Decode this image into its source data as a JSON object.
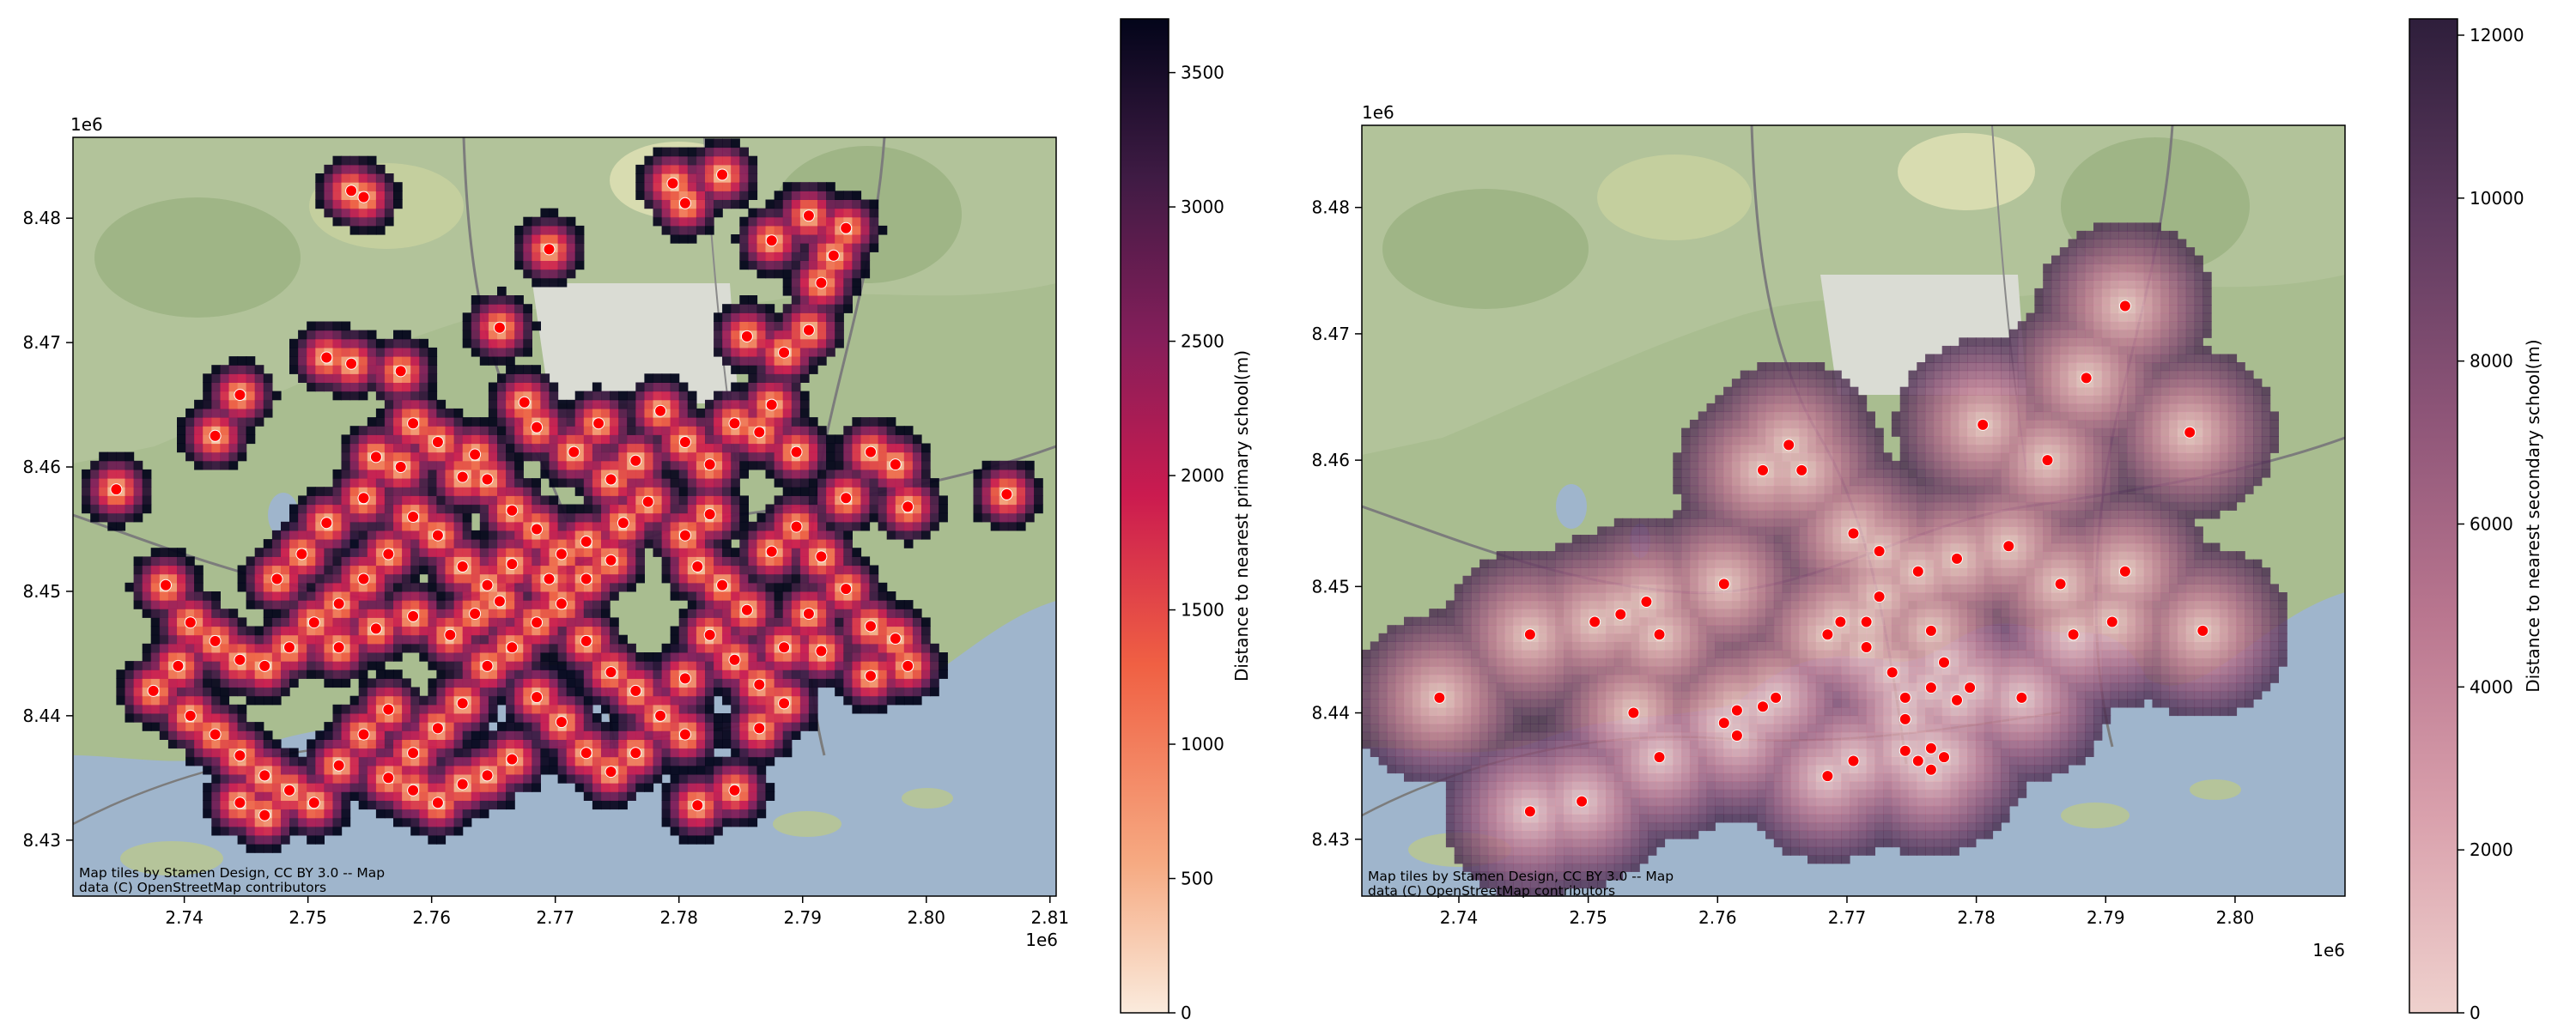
{
  "figure": {
    "panels": [
      {
        "id": "primary",
        "xlim": [
          2.731,
          2.8105
        ],
        "ylim": [
          8.4255,
          8.4865
        ],
        "xticks": [
          2.74,
          2.75,
          2.76,
          2.77,
          2.78,
          2.79,
          2.8,
          2.81
        ],
        "yticks": [
          8.43,
          8.44,
          8.45,
          8.46,
          8.47,
          8.48
        ],
        "xtick_labels": [
          "2.74",
          "2.75",
          "2.76",
          "2.77",
          "2.78",
          "2.79",
          "2.80",
          "2.81"
        ],
        "ytick_labels": [
          "8.43",
          "8.44",
          "8.45",
          "8.46",
          "8.47",
          "8.48"
        ],
        "x_offset_label": "1e6",
        "y_offset_label": "1e6",
        "attribution_line1": "Map tiles by Stamen Design, CC BY 3.0 -- Map",
        "attribution_line2": "data (C) OpenStreetMap contributors",
        "colorbar": {
          "label": "Distance to nearest primary school(m)",
          "vmin": 0,
          "vmax": 3700,
          "ticks": [
            0,
            500,
            1000,
            1500,
            2000,
            2500,
            3000,
            3500
          ],
          "tick_labels": [
            "0",
            "500",
            "1000",
            "1500",
            "2000",
            "2500",
            "3000",
            "3500"
          ],
          "colormap": "rocket_r",
          "colors": [
            "#faebdd",
            "#f6aa82",
            "#f06043",
            "#cb1b4f",
            "#841e5a",
            "#3f1b44",
            "#03051a"
          ]
        }
      },
      {
        "id": "secondary",
        "xlim": [
          2.7325,
          2.8085
        ],
        "ylim": [
          8.4255,
          8.4865
        ],
        "xticks": [
          2.74,
          2.75,
          2.76,
          2.77,
          2.78,
          2.79,
          2.8
        ],
        "yticks": [
          8.43,
          8.44,
          8.45,
          8.46,
          8.47,
          8.48
        ],
        "xtick_labels": [
          "2.74",
          "2.75",
          "2.76",
          "2.77",
          "2.78",
          "2.79",
          "2.80"
        ],
        "ytick_labels": [
          "8.43",
          "8.44",
          "8.45",
          "8.46",
          "8.47",
          "8.48"
        ],
        "x_offset_label": "1e6",
        "y_offset_label": "1e6",
        "attribution_line1": "Map tiles by Stamen Design, CC BY 3.0 -- Map",
        "attribution_line2": "data (C) OpenStreetMap contributors",
        "colorbar": {
          "label": "Distance to nearest secondary school(m)",
          "vmin": 0,
          "vmax": 12200,
          "ticks": [
            0,
            2000,
            4000,
            6000,
            8000,
            10000,
            12000
          ],
          "tick_labels": [
            "0",
            "2000",
            "4000",
            "6000",
            "8000",
            "10000",
            "12000"
          ],
          "colormap": "ch:s=-.2,r=.6",
          "colors": [
            "#efd1cd",
            "#d9a0ac",
            "#b9768f",
            "#8e5578",
            "#5e3a5f",
            "#2e1e3b"
          ]
        }
      }
    ],
    "school_marker_color": "#ff0000"
  },
  "chart_data": [
    {
      "type": "heatmap",
      "title": "",
      "xlabel": "",
      "ylabel": "",
      "value_label": "Distance to nearest primary school(m)",
      "xlim": [
        2731000,
        2810500
      ],
      "ylim": [
        8425500,
        8486500
      ],
      "value_range": [
        0,
        3700
      ],
      "schools": [
        [
          2.7345,
          8.4582
        ],
        [
          2.7535,
          8.4822
        ],
        [
          2.7545,
          8.4817
        ],
        [
          2.7795,
          8.4828
        ],
        [
          2.7805,
          8.4812
        ],
        [
          2.7835,
          8.4835
        ],
        [
          2.7695,
          8.4775
        ],
        [
          2.7425,
          8.4625
        ],
        [
          2.7445,
          8.4658
        ],
        [
          2.7515,
          8.4688
        ],
        [
          2.7535,
          8.4683
        ],
        [
          2.7575,
          8.4677
        ],
        [
          2.7585,
          8.4635
        ],
        [
          2.7555,
          8.4608
        ],
        [
          2.7645,
          8.459
        ],
        [
          2.7665,
          8.4565
        ],
        [
          2.7625,
          8.4592
        ],
        [
          2.7675,
          8.4652
        ],
        [
          2.7685,
          8.4632
        ],
        [
          2.7655,
          8.4712
        ],
        [
          2.7715,
          8.4612
        ],
        [
          2.7735,
          8.4635
        ],
        [
          2.7785,
          8.4645
        ],
        [
          2.7805,
          8.462
        ],
        [
          2.7825,
          8.4602
        ],
        [
          2.7845,
          8.4635
        ],
        [
          2.7865,
          8.4628
        ],
        [
          2.7895,
          8.4612
        ],
        [
          2.7875,
          8.465
        ],
        [
          2.7855,
          8.4705
        ],
        [
          2.7885,
          8.4692
        ],
        [
          2.7905,
          8.471
        ],
        [
          2.7915,
          8.4748
        ],
        [
          2.7875,
          8.4782
        ],
        [
          2.7905,
          8.4802
        ],
        [
          2.7935,
          8.4792
        ],
        [
          2.7925,
          8.477
        ],
        [
          2.7955,
          8.4612
        ],
        [
          2.7975,
          8.4602
        ],
        [
          2.7985,
          8.4568
        ],
        [
          2.8065,
          8.4578
        ],
        [
          2.7935,
          8.4575
        ],
        [
          2.7895,
          8.4552
        ],
        [
          2.7875,
          8.4532
        ],
        [
          2.7915,
          8.4528
        ],
        [
          2.7935,
          8.4502
        ],
        [
          2.7905,
          8.4482
        ],
        [
          2.7955,
          8.4472
        ],
        [
          2.7975,
          8.4462
        ],
        [
          2.7985,
          8.444
        ],
        [
          2.7955,
          8.4432
        ],
        [
          2.7915,
          8.4452
        ],
        [
          2.7885,
          8.4455
        ],
        [
          2.7855,
          8.4485
        ],
        [
          2.7835,
          8.4505
        ],
        [
          2.7815,
          8.452
        ],
        [
          2.7805,
          8.4545
        ],
        [
          2.7825,
          8.4562
        ],
        [
          2.7775,
          8.4572
        ],
        [
          2.7755,
          8.4555
        ],
        [
          2.7745,
          8.4525
        ],
        [
          2.7725,
          8.451
        ],
        [
          2.7705,
          8.453
        ],
        [
          2.7685,
          8.455
        ],
        [
          2.7665,
          8.4522
        ],
        [
          2.7645,
          8.4505
        ],
        [
          2.7625,
          8.452
        ],
        [
          2.7605,
          8.4545
        ],
        [
          2.7585,
          8.456
        ],
        [
          2.7565,
          8.453
        ],
        [
          2.7545,
          8.451
        ],
        [
          2.7525,
          8.449
        ],
        [
          2.7505,
          8.4475
        ],
        [
          2.7485,
          8.4455
        ],
        [
          2.7465,
          8.444
        ],
        [
          2.7445,
          8.4445
        ],
        [
          2.7425,
          8.446
        ],
        [
          2.7405,
          8.4475
        ],
        [
          2.7385,
          8.4505
        ],
        [
          2.7395,
          8.444
        ],
        [
          2.7375,
          8.442
        ],
        [
          2.7405,
          8.44
        ],
        [
          2.7425,
          8.4385
        ],
        [
          2.7445,
          8.4368
        ],
        [
          2.7465,
          8.4352
        ],
        [
          2.7485,
          8.434
        ],
        [
          2.7505,
          8.433
        ],
        [
          2.7465,
          8.432
        ],
        [
          2.7445,
          8.433
        ],
        [
          2.7525,
          8.436
        ],
        [
          2.7545,
          8.4385
        ],
        [
          2.7565,
          8.4405
        ],
        [
          2.7585,
          8.437
        ],
        [
          2.7605,
          8.439
        ],
        [
          2.7625,
          8.441
        ],
        [
          2.7645,
          8.444
        ],
        [
          2.7665,
          8.4455
        ],
        [
          2.7685,
          8.4475
        ],
        [
          2.7705,
          8.449
        ],
        [
          2.7725,
          8.446
        ],
        [
          2.7745,
          8.4435
        ],
        [
          2.7765,
          8.442
        ],
        [
          2.7785,
          8.44
        ],
        [
          2.7805,
          8.4385
        ],
        [
          2.7765,
          8.437
        ],
        [
          2.7745,
          8.4355
        ],
        [
          2.7725,
          8.437
        ],
        [
          2.7705,
          8.4395
        ],
        [
          2.7685,
          8.4415
        ],
        [
          2.7665,
          8.4365
        ],
        [
          2.7645,
          8.4352
        ],
        [
          2.7625,
          8.4345
        ],
        [
          2.7605,
          8.433
        ],
        [
          2.7585,
          8.434
        ],
        [
          2.7565,
          8.435
        ],
        [
          2.7805,
          8.443
        ],
        [
          2.7825,
          8.4465
        ],
        [
          2.7845,
          8.4445
        ],
        [
          2.7865,
          8.4425
        ],
        [
          2.7885,
          8.441
        ],
        [
          2.7865,
          8.439
        ],
        [
          2.7845,
          8.434
        ],
        [
          2.7815,
          8.4328
        ],
        [
          2.7525,
          8.4455
        ],
        [
          2.7555,
          8.447
        ],
        [
          2.7585,
          8.448
        ],
        [
          2.7615,
          8.4465
        ],
        [
          2.7635,
          8.4482
        ],
        [
          2.7655,
          8.4492
        ],
        [
          2.7695,
          8.451
        ],
        [
          2.7725,
          8.454
        ],
        [
          2.7745,
          8.459
        ],
        [
          2.7765,
          8.4605
        ],
        [
          2.7635,
          8.461
        ],
        [
          2.7605,
          8.462
        ],
        [
          2.7575,
          8.46
        ],
        [
          2.7545,
          8.4575
        ],
        [
          2.7515,
          8.4555
        ],
        [
          2.7495,
          8.453
        ],
        [
          2.7475,
          8.451
        ]
      ]
    },
    {
      "type": "heatmap",
      "title": "",
      "xlabel": "",
      "ylabel": "",
      "value_label": "Distance to nearest secondary school(m)",
      "xlim": [
        2732500,
        2808500
      ],
      "ylim": [
        8425500,
        8486500
      ],
      "value_range": [
        0,
        12200
      ],
      "schools": [
        [
          2.7915,
          8.4722
        ],
        [
          2.7965,
          8.4622
        ],
        [
          2.7885,
          8.4665
        ],
        [
          2.7855,
          8.46
        ],
        [
          2.7805,
          8.4628
        ],
        [
          2.7825,
          8.4532
        ],
        [
          2.7785,
          8.4522
        ],
        [
          2.7755,
          8.4512
        ],
        [
          2.7725,
          8.4528
        ],
        [
          2.7705,
          8.4542
        ],
        [
          2.7655,
          8.4612
        ],
        [
          2.7665,
          8.4592
        ],
        [
          2.7635,
          8.4592
        ],
        [
          2.7605,
          8.4502
        ],
        [
          2.7545,
          8.4488
        ],
        [
          2.7525,
          8.4478
        ],
        [
          2.7505,
          8.4472
        ],
        [
          2.7455,
          8.4462
        ],
        [
          2.7555,
          8.4462
        ],
        [
          2.7385,
          8.4412
        ],
        [
          2.7535,
          8.44
        ],
        [
          2.7555,
          8.4365
        ],
        [
          2.7495,
          8.433
        ],
        [
          2.7455,
          8.4322
        ],
        [
          2.7605,
          8.4392
        ],
        [
          2.7615,
          8.4402
        ],
        [
          2.7635,
          8.4405
        ],
        [
          2.7645,
          8.4412
        ],
        [
          2.7615,
          8.4382
        ],
        [
          2.7685,
          8.435
        ],
        [
          2.7705,
          8.4362
        ],
        [
          2.7745,
          8.437
        ],
        [
          2.7755,
          8.4362
        ],
        [
          2.7765,
          8.4372
        ],
        [
          2.7775,
          8.4365
        ],
        [
          2.7765,
          8.4355
        ],
        [
          2.7745,
          8.4395
        ],
        [
          2.7765,
          8.442
        ],
        [
          2.7785,
          8.441
        ],
        [
          2.7795,
          8.442
        ],
        [
          2.7775,
          8.444
        ],
        [
          2.7745,
          8.4412
        ],
        [
          2.7735,
          8.4432
        ],
        [
          2.7715,
          8.4452
        ],
        [
          2.7695,
          8.4472
        ],
        [
          2.7715,
          8.4472
        ],
        [
          2.7685,
          8.4462
        ],
        [
          2.7725,
          8.4492
        ],
        [
          2.7765,
          8.4465
        ],
        [
          2.7835,
          8.4412
        ],
        [
          2.7875,
          8.4462
        ],
        [
          2.7865,
          8.4502
        ],
        [
          2.7915,
          8.4512
        ],
        [
          2.7905,
          8.4472
        ],
        [
          2.7975,
          8.4465
        ]
      ]
    }
  ]
}
